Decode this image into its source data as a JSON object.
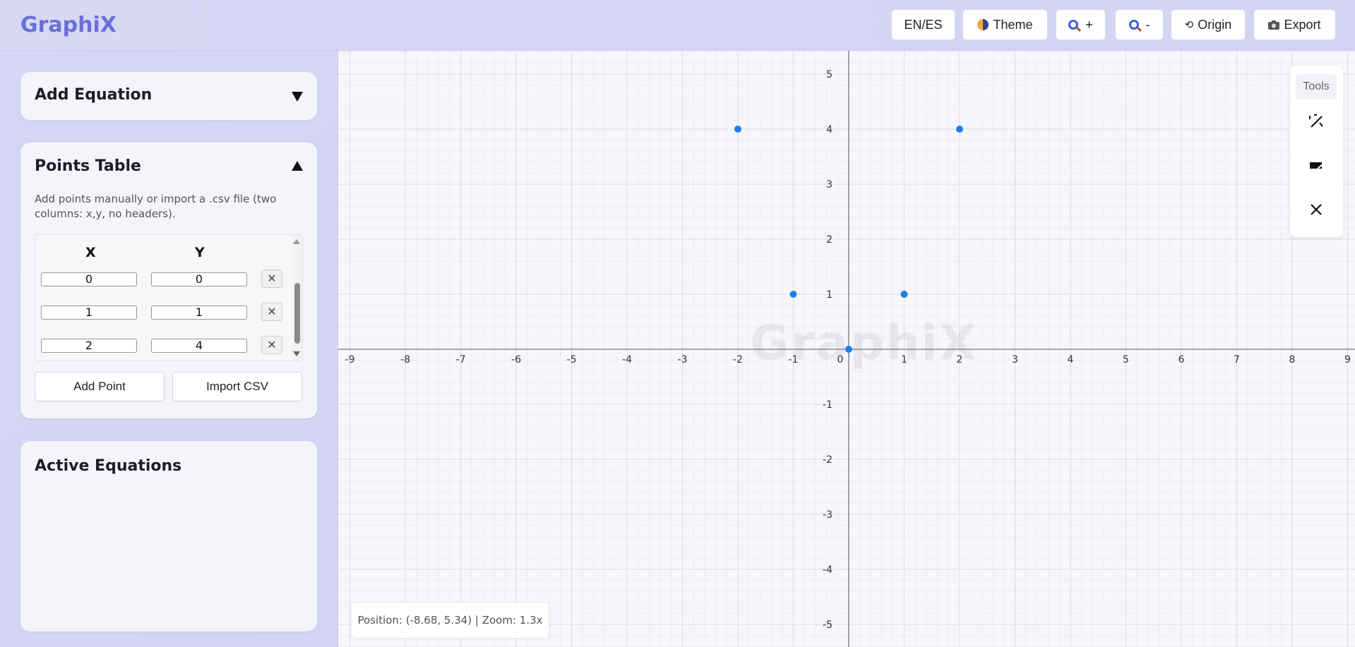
{
  "header": {
    "logo": "GraphiX",
    "buttons": {
      "lang": "EN/ES",
      "theme": "Theme",
      "zoom_in": "+",
      "zoom_out": "-",
      "origin": "Origin",
      "export": "Export"
    }
  },
  "sidebar": {
    "add_equation": {
      "title": "Add Equation"
    },
    "points_table": {
      "title": "Points Table",
      "description": "Add points manually or import a .csv file (two columns: x,y, no headers).",
      "col_x": "X",
      "col_y": "Y",
      "rows": [
        {
          "x": "0",
          "y": "0"
        },
        {
          "x": "1",
          "y": "1"
        },
        {
          "x": "2",
          "y": "4"
        }
      ],
      "add_point": "Add Point",
      "import_csv": "Import CSV"
    },
    "active_equations": {
      "title": "Active Equations"
    }
  },
  "graph": {
    "watermark": "GraphiX",
    "tools_label": "Tools",
    "status": "Position: (-8.68, 5.34) | Zoom: 1.3x",
    "x_ticks": [
      "-9",
      "-8",
      "-7",
      "-6",
      "-5",
      "-4",
      "-3",
      "-2",
      "-1",
      "0",
      "1",
      "2",
      "3",
      "4",
      "5",
      "6",
      "7",
      "8",
      "9"
    ],
    "y_ticks": [
      "5",
      "4",
      "3",
      "2",
      "1",
      "-1",
      "-2",
      "-3",
      "-4",
      "-5"
    ],
    "point_color": "#1a7ff0"
  },
  "chart_data": {
    "type": "scatter",
    "points": [
      {
        "x": -2,
        "y": 4
      },
      {
        "x": -1,
        "y": 1
      },
      {
        "x": 0,
        "y": 0
      },
      {
        "x": 1,
        "y": 1
      },
      {
        "x": 2,
        "y": 4
      }
    ],
    "xlim": [
      -9,
      9
    ],
    "ylim": [
      -5,
      5
    ],
    "grid": true
  }
}
